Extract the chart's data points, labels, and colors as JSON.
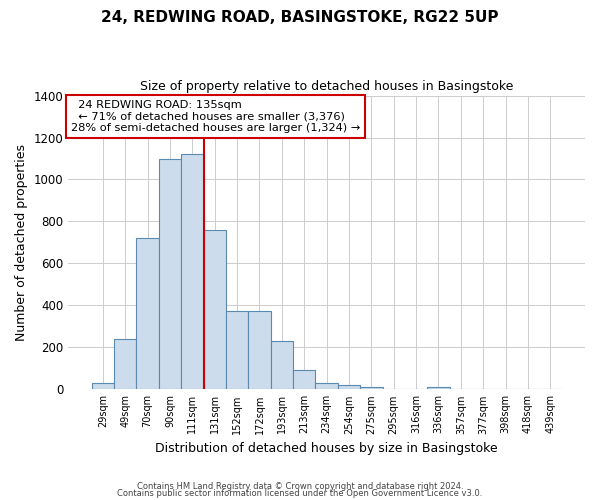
{
  "title": "24, REDWING ROAD, BASINGSTOKE, RG22 5UP",
  "subtitle": "Size of property relative to detached houses in Basingstoke",
  "xlabel": "Distribution of detached houses by size in Basingstoke",
  "ylabel": "Number of detached properties",
  "bar_labels": [
    "29sqm",
    "49sqm",
    "70sqm",
    "90sqm",
    "111sqm",
    "131sqm",
    "152sqm",
    "172sqm",
    "193sqm",
    "213sqm",
    "234sqm",
    "254sqm",
    "275sqm",
    "295sqm",
    "316sqm",
    "336sqm",
    "357sqm",
    "377sqm",
    "398sqm",
    "418sqm",
    "439sqm"
  ],
  "bar_values": [
    28,
    240,
    720,
    1100,
    1120,
    760,
    375,
    375,
    230,
    90,
    30,
    20,
    10,
    0,
    0,
    10,
    0,
    0,
    0,
    0,
    0
  ],
  "bar_color": "#ccdcec",
  "bar_edgecolor": "#5a8ab0",
  "vline_x_idx": 5,
  "vline_color": "#cc0000",
  "ylim": [
    0,
    1400
  ],
  "yticks": [
    0,
    200,
    400,
    600,
    800,
    1000,
    1200,
    1400
  ],
  "annotation_title": "24 REDWING ROAD: 135sqm",
  "annotation_line1": "← 71% of detached houses are smaller (3,376)",
  "annotation_line2": "28% of semi-detached houses are larger (1,324) →",
  "annotation_box_color": "#ffffff",
  "annotation_box_edgecolor": "#cc0000",
  "footer1": "Contains HM Land Registry data © Crown copyright and database right 2024.",
  "footer2": "Contains public sector information licensed under the Open Government Licence v3.0.",
  "background_color": "#ffffff",
  "grid_color": "#cccccc"
}
